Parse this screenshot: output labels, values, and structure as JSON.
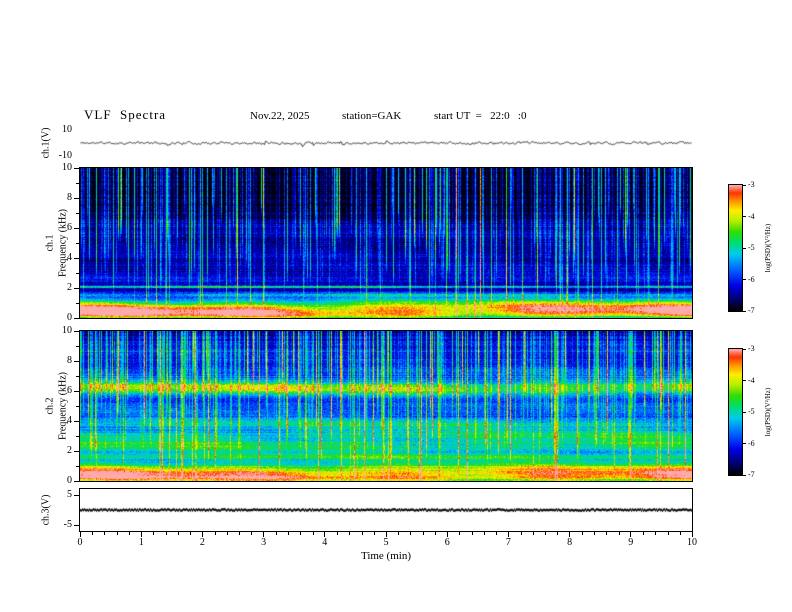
{
  "header": {
    "title": "VLF  Spectra",
    "date": "Nov.22, 2025",
    "station": "station=GAK",
    "start_ut": "start UT  =   22:0   :0"
  },
  "x_axis": {
    "label": "Time  (min)",
    "ticks": [
      "0",
      "1",
      "2",
      "3",
      "4",
      "5",
      "6",
      "7",
      "8",
      "9",
      "10"
    ],
    "range_min": [
      0,
      10
    ]
  },
  "panels": {
    "ch1_wave": {
      "label": "ch.1(V)",
      "yticks": [
        "10",
        "-10"
      ],
      "ylim": [
        -10,
        10
      ]
    },
    "ch1_spec": {
      "channel": "ch.1",
      "axis_label": "Frequency  (kHz)",
      "yticks": [
        "10",
        "8",
        "6",
        "4",
        "2",
        "0"
      ],
      "ylim_khz": [
        0,
        10
      ]
    },
    "ch2_spec": {
      "channel": "ch.2",
      "axis_label": "Frequency  (kHz)",
      "yticks": [
        "10",
        "8",
        "6",
        "4",
        "2",
        "0"
      ],
      "ylim_khz": [
        0,
        10
      ]
    },
    "ch3_wave": {
      "label": "ch.3(V)",
      "yticks": [
        "5",
        "-5"
      ],
      "ylim": [
        -7,
        7
      ]
    }
  },
  "colorbar": {
    "label": "log(PSD)(V²/Hz)",
    "ticks": [
      "-3",
      "-4",
      "-5",
      "-6",
      "-7"
    ],
    "zlim": [
      -7,
      -3
    ]
  },
  "colormap": [
    {
      "t": 0.0,
      "c": "#000000"
    },
    {
      "t": 0.08,
      "c": "#000066"
    },
    {
      "t": 0.2,
      "c": "#0000e6"
    },
    {
      "t": 0.33,
      "c": "#0066ff"
    },
    {
      "t": 0.45,
      "c": "#00ccee"
    },
    {
      "t": 0.55,
      "c": "#00dd66"
    },
    {
      "t": 0.63,
      "c": "#33dd00"
    },
    {
      "t": 0.72,
      "c": "#bbee00"
    },
    {
      "t": 0.8,
      "c": "#ffee00"
    },
    {
      "t": 0.87,
      "c": "#ff9900"
    },
    {
      "t": 0.94,
      "c": "#ff3300"
    },
    {
      "t": 1.0,
      "c": "#ffaaaa"
    }
  ],
  "chart_data": [
    {
      "type": "line",
      "name": "ch.1 time series",
      "ylabel": "ch.1(V)",
      "ylim": [
        -10,
        10
      ],
      "xlim_min": [
        0,
        10
      ],
      "description": "Broadband noise waveform centered on 0 V, typical excursions of a few volts with occasional larger spikes across the full 10 minutes",
      "noise_amplitude_v": 1.6,
      "spike_amplitude_v": 5,
      "spike_probability": 0.02,
      "seed": 11
    },
    {
      "type": "heatmap",
      "name": "ch.1 spectrogram",
      "xlabel": "Time (min)",
      "ylabel": "Frequency (kHz)",
      "xlim_min": [
        0,
        10
      ],
      "ylim_khz": [
        0,
        10
      ],
      "zlabel": "log(PSD)(V²/Hz)",
      "zlim": [
        -7,
        -3
      ],
      "description": "Mostly dark (near -7) above 2 kHz with dense narrow vertical sferic streaks reaching down from 10 kHz; strong horizontal emission bands below 2 kHz (red/yellow/green near 0-1 kHz), a persistent narrow green line near 2 kHz, faint blue banding near 2.5-6 kHz",
      "background_level": -6.7,
      "tilt": -0.03,
      "row_stripe": 0.18,
      "pixel_noise": 0.3,
      "streak_density": 0.55,
      "broadband_density": 0.05,
      "bands": [
        {
          "f": 0.2,
          "w": 0.25,
          "a": 3.0
        },
        {
          "f": 0.6,
          "w": 0.2,
          "a": 2.4
        },
        {
          "f": 1.0,
          "w": 0.2,
          "a": 2.0
        },
        {
          "f": 1.5,
          "w": 0.15,
          "a": 1.4
        },
        {
          "f": 2.05,
          "w": 0.07,
          "a": 1.7
        },
        {
          "f": 2.6,
          "w": 0.25,
          "a": 0.6
        },
        {
          "f": 3.4,
          "w": 0.4,
          "a": 0.45
        },
        {
          "f": 4.4,
          "w": 0.35,
          "a": 0.35
        },
        {
          "f": 5.8,
          "w": 0.6,
          "a": 0.45
        }
      ],
      "seed": 42
    },
    {
      "type": "heatmap",
      "name": "ch.2 spectrogram",
      "xlabel": "Time (min)",
      "ylabel": "Frequency (kHz)",
      "xlim_min": [
        0,
        10
      ],
      "ylim_khz": [
        0,
        10
      ],
      "zlabel": "log(PSD)(V²/Hz)",
      "zlim": [
        -7,
        -3
      ],
      "description": "Overall brighter (blue) background than ch.1; green horizontal bands between 2-4 kHz, a strong yellow-green band near 6-6.5 kHz, bright green/yellow emission below 1 kHz, bluish band near 8-9 kHz, with many vertical sferic streaks throughout",
      "background_level": -6.0,
      "tilt": -0.06,
      "row_stripe": 0.22,
      "pixel_noise": 0.3,
      "streak_density": 0.5,
      "broadband_density": 0.05,
      "bands": [
        {
          "f": 0.2,
          "w": 0.3,
          "a": 2.4
        },
        {
          "f": 0.8,
          "w": 0.3,
          "a": 1.8
        },
        {
          "f": 1.6,
          "w": 0.25,
          "a": 1.2
        },
        {
          "f": 2.3,
          "w": 0.3,
          "a": 1.1
        },
        {
          "f": 3.0,
          "w": 0.35,
          "a": 1.2
        },
        {
          "f": 3.8,
          "w": 0.3,
          "a": 1.0
        },
        {
          "f": 4.8,
          "w": 0.4,
          "a": 0.7
        },
        {
          "f": 6.2,
          "w": 0.35,
          "a": 2.0
        },
        {
          "f": 7.2,
          "w": 0.3,
          "a": 0.6
        },
        {
          "f": 8.6,
          "w": 0.7,
          "a": 0.5
        }
      ],
      "seed": 77
    },
    {
      "type": "line",
      "name": "ch.3 time series",
      "ylabel": "ch.3(V)",
      "ylim": [
        -7,
        7
      ],
      "xlim_min": [
        0,
        10
      ],
      "value": 0,
      "description": "Essentially flat dark trace at 0 V for the whole interval",
      "seed": 5
    }
  ]
}
